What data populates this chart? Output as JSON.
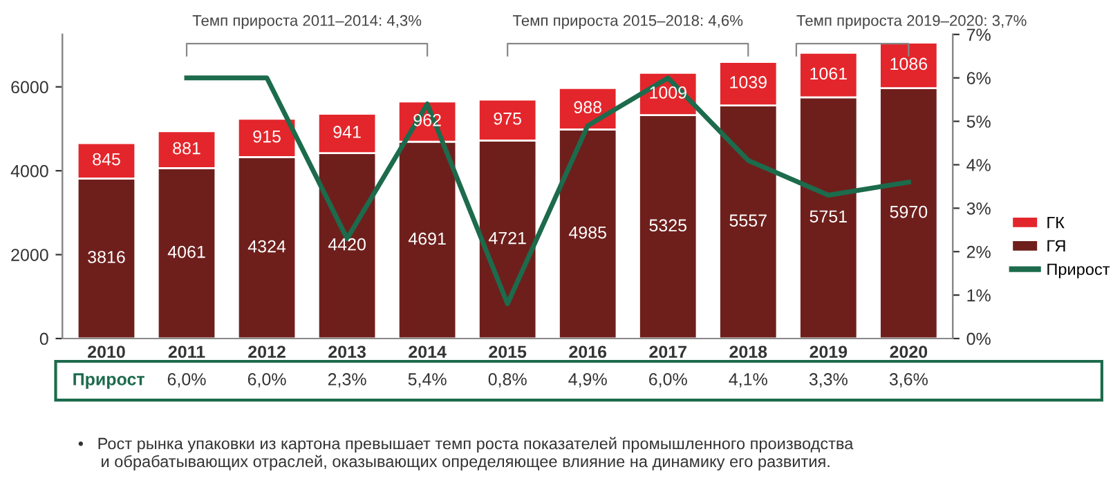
{
  "chart_data": {
    "type": "bar",
    "stacked": true,
    "categories": [
      "2010",
      "2011",
      "2012",
      "2013",
      "2014",
      "2015",
      "2016",
      "2017",
      "2018",
      "2019",
      "2020"
    ],
    "series": [
      {
        "name": "ГЯ",
        "color": "#6e1f1c",
        "values": [
          3816,
          4061,
          4324,
          4420,
          4691,
          4721,
          4985,
          5325,
          5557,
          5751,
          5970
        ]
      },
      {
        "name": "ГК",
        "color": "#e3262b",
        "values": [
          845,
          881,
          915,
          941,
          962,
          975,
          988,
          1009,
          1039,
          1061,
          1086
        ]
      },
      {
        "name": "Прирост",
        "type": "line",
        "axis": "y2",
        "color": "#1c6b4c",
        "values": [
          null,
          6.0,
          6.0,
          2.3,
          5.4,
          0.8,
          4.9,
          6.0,
          4.1,
          3.3,
          3.6
        ],
        "value_labels": [
          null,
          "6,0%",
          "6,0%",
          "2,3%",
          "5,4%",
          "0,8%",
          "4,9%",
          "6,0%",
          "4,1%",
          "3,3%",
          "3,6%"
        ]
      }
    ],
    "data_labels": true,
    "ylim": [
      0,
      7250
    ],
    "yticks": [
      0,
      2000,
      4000,
      6000
    ],
    "y2lim": [
      0,
      7
    ],
    "y2ticks": [
      {
        "value": 0,
        "label": "0%"
      },
      {
        "value": 1,
        "label": "1%"
      },
      {
        "value": 2,
        "label": "2%"
      },
      {
        "value": 3,
        "label": "3%"
      },
      {
        "value": 4,
        "label": "4%"
      },
      {
        "value": 5,
        "label": "5%"
      },
      {
        "value": 6,
        "label": "6%"
      },
      {
        "value": 7,
        "label": "7%"
      }
    ],
    "legend": "right",
    "grid": false,
    "annotations": [
      "Темп прироста 2011–2014: 4,3%",
      "Темп прироста 2015–2018: 4,6%",
      "Темп прироста 2019–2020: 3,7%",
      "•   Рост рынка упаковки из картона превышает темп роста показателей промышленного производства\n     и обрабатывающих отраслей, оказывающих определяющее влияние на динамику его развития."
    ]
  }
}
